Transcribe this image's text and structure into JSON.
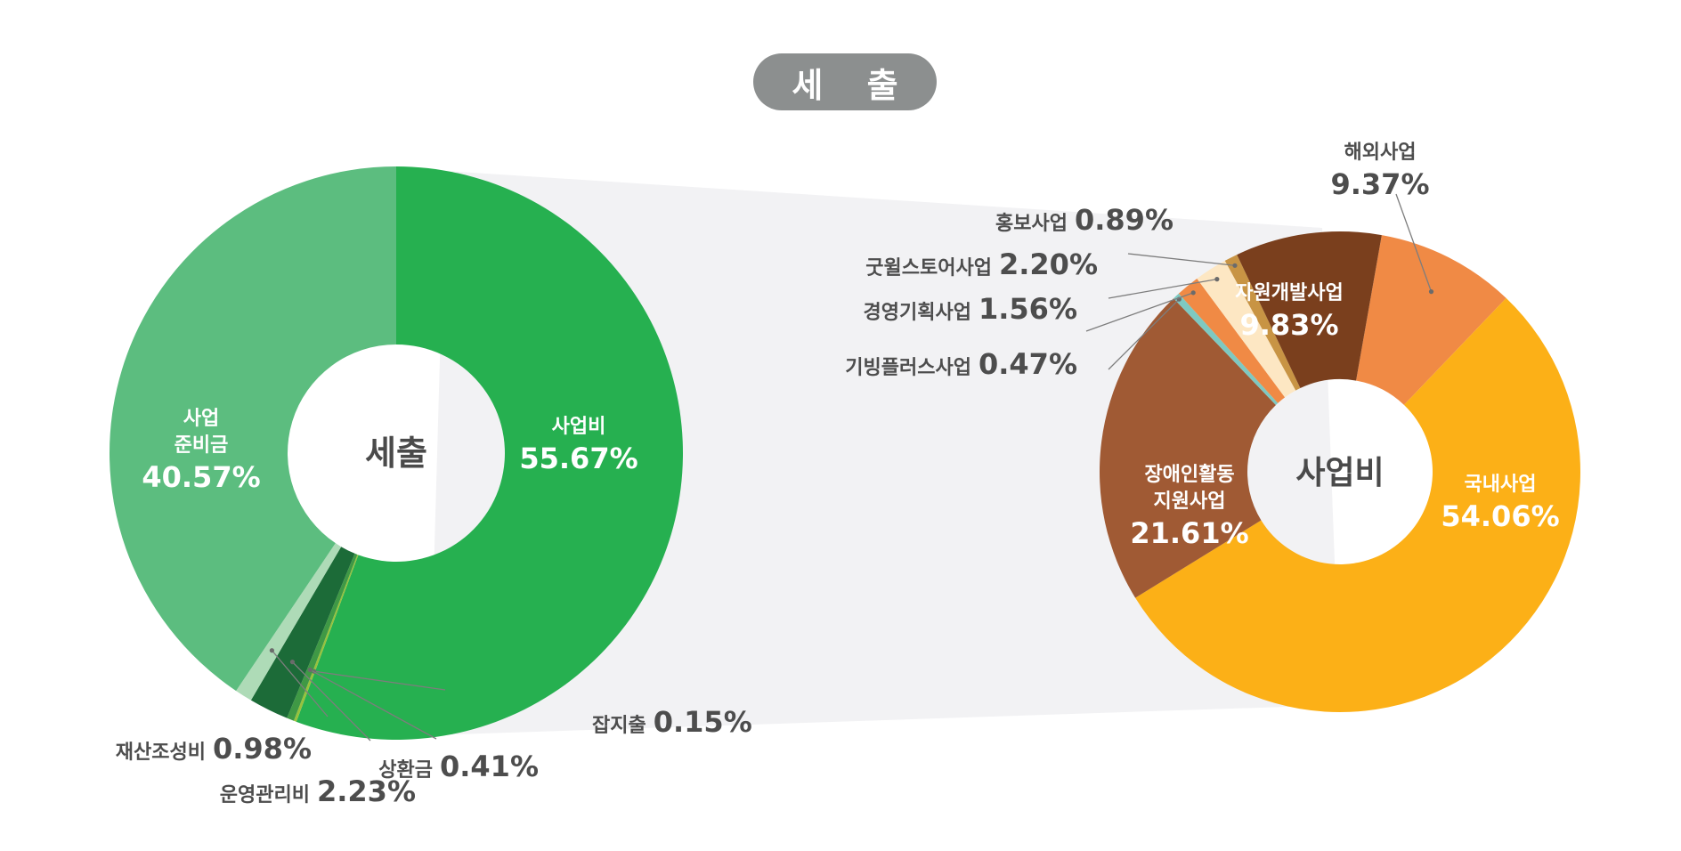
{
  "header": {
    "title": "세 출"
  },
  "chart_data": [
    {
      "type": "donut",
      "center_label": "세출",
      "unit": "%",
      "slices": [
        {
          "name": "사업비",
          "value": 55.67,
          "color": "#26b050",
          "label_style": "inner",
          "display": "55.67%"
        },
        {
          "name": "잡지출",
          "value": 0.15,
          "color": "#97c23c",
          "label_style": "outer",
          "display": "0.15%"
        },
        {
          "name": "상환금",
          "value": 0.41,
          "color": "#3f9945",
          "label_style": "outer",
          "display": "0.41%"
        },
        {
          "name": "운영관리비",
          "value": 2.23,
          "color": "#1c6b38",
          "label_style": "outer",
          "display": "2.23%"
        },
        {
          "name": "재산조성비",
          "value": 0.98,
          "color": "#aedbb7",
          "label_style": "outer",
          "display": "0.98%"
        },
        {
          "name": "사업 준비금",
          "value": 40.57,
          "color": "#5cbd7f",
          "label_style": "inner",
          "display": "40.57%"
        }
      ]
    },
    {
      "type": "donut",
      "center_label": "사업비",
      "unit": "%",
      "slices": [
        {
          "name": "해외사업",
          "value": 9.37,
          "color": "#f08a45",
          "label_style": "outer",
          "display": "9.37%"
        },
        {
          "name": "국내사업",
          "value": 54.06,
          "color": "#fcb017",
          "label_style": "inner",
          "display": "54.06%"
        },
        {
          "name": "장애인활동 지원사업",
          "value": 21.61,
          "color": "#a05a34",
          "label_style": "inner",
          "display": "21.61%"
        },
        {
          "name": "기빙플러스사업",
          "value": 0.47,
          "color": "#7ec9c1",
          "label_style": "outer",
          "display": "0.47%"
        },
        {
          "name": "경영기획사업",
          "value": 1.56,
          "color": "#f08a45",
          "label_style": "outer",
          "display": "1.56%"
        },
        {
          "name": "굿윌스토어사업",
          "value": 2.2,
          "color": "#fde7c3",
          "label_style": "outer",
          "display": "2.20%"
        },
        {
          "name": "홍보사업",
          "value": 0.89,
          "color": "#c89444",
          "label_style": "outer",
          "display": "0.89%"
        },
        {
          "name": "자원개발사업",
          "value": 9.83,
          "color": "#7a3f1d",
          "label_style": "inner",
          "display": "9.83%"
        }
      ]
    }
  ]
}
